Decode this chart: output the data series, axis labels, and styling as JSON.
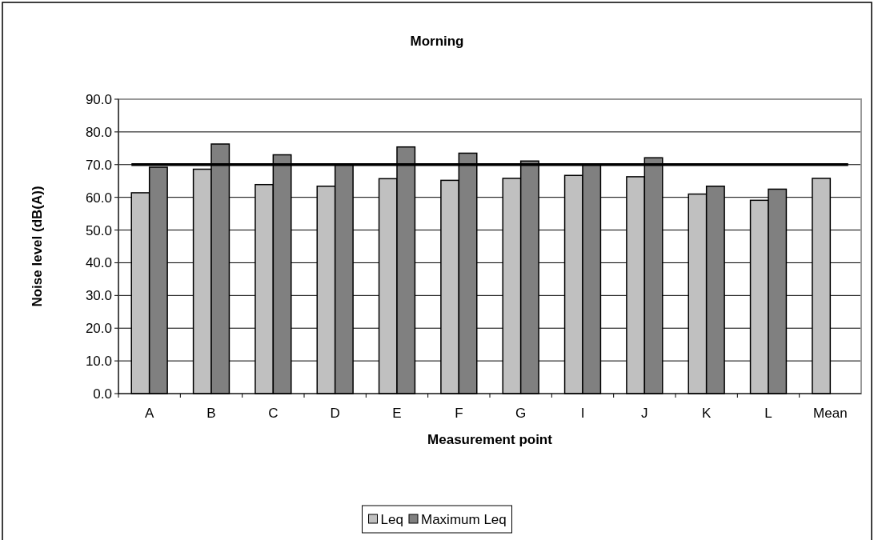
{
  "chart_data": {
    "type": "bar",
    "title": "Morning",
    "xlabel": "Measurement point",
    "ylabel": "Noise level (dB(A))",
    "categories": [
      "A",
      "B",
      "C",
      "D",
      "E",
      "F",
      "G",
      "I",
      "J",
      "K",
      "L",
      "Mean"
    ],
    "series": [
      {
        "name": "Leq",
        "color": "#c0c0c0",
        "values": [
          61.4,
          68.6,
          63.9,
          63.4,
          65.7,
          65.2,
          65.8,
          66.7,
          66.3,
          61.0,
          59.1,
          65.8
        ]
      },
      {
        "name": "Maximum Leq",
        "color": "#808080",
        "values": [
          69.2,
          76.3,
          73.0,
          70.0,
          75.4,
          73.5,
          71.1,
          69.9,
          72.1,
          63.4,
          62.5,
          null
        ]
      }
    ],
    "ylim": [
      0,
      90
    ],
    "yticks": [
      {
        "value": 0,
        "label": "0.0"
      },
      {
        "value": 10,
        "label": "10.0"
      },
      {
        "value": 20,
        "label": "20.0"
      },
      {
        "value": 30,
        "label": "30.0"
      },
      {
        "value": 40,
        "label": "40.0"
      },
      {
        "value": 50,
        "label": "50.0"
      },
      {
        "value": 60,
        "label": "60.0"
      },
      {
        "value": 70,
        "label": "70.0"
      },
      {
        "value": 80,
        "label": "80.0"
      },
      {
        "value": 90,
        "label": "90.0"
      }
    ],
    "ref_lines": [
      {
        "axis": "y",
        "value": 70,
        "color": "#000000"
      }
    ],
    "grid": "y",
    "legend": "bottom"
  }
}
